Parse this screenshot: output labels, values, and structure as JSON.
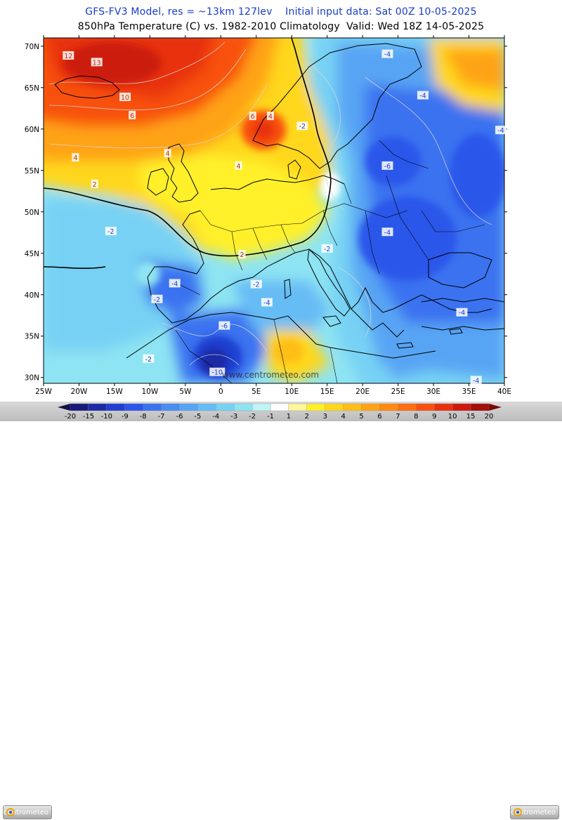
{
  "header": {
    "title_line1": "GFS-FV3 Model, res = ~13km 127lev    Initial input data: Sat 00Z 10-05-2025",
    "title_line2": "850hPa Temperature (C) vs. 1982-2010 Climatology  Valid: Wed 18Z 14-05-2025"
  },
  "axes": {
    "lat_labels": [
      "70N",
      "65N",
      "60N",
      "55N",
      "50N",
      "45N",
      "40N",
      "35N",
      "30N"
    ],
    "lon_labels": [
      "25W",
      "20W",
      "15W",
      "10W",
      "5W",
      "0",
      "5E",
      "10E",
      "15E",
      "20E",
      "25E",
      "30E",
      "35E",
      "40E"
    ]
  },
  "watermark": "www.centrometeo.com",
  "contour_labels": [
    {
      "text": "12",
      "lon": -21.5,
      "lat": 68.8
    },
    {
      "text": "13",
      "lon": -17.5,
      "lat": 68.0
    },
    {
      "text": "10",
      "lon": -13.5,
      "lat": 63.8
    },
    {
      "text": "6",
      "lon": -12.5,
      "lat": 61.6
    },
    {
      "text": "4",
      "lon": -20.5,
      "lat": 56.5
    },
    {
      "text": "4",
      "lon": -7.5,
      "lat": 57.0
    },
    {
      "text": "2",
      "lon": -17.8,
      "lat": 53.3
    },
    {
      "text": "4",
      "lon": 2.5,
      "lat": 55.5
    },
    {
      "text": "6",
      "lon": 4.5,
      "lat": 61.5
    },
    {
      "text": "4",
      "lon": 7.0,
      "lat": 61.5
    },
    {
      "text": "-2",
      "lon": 11.5,
      "lat": 60.3
    },
    {
      "text": "-4",
      "lon": 23.5,
      "lat": 69.0
    },
    {
      "text": "-4",
      "lon": 28.5,
      "lat": 64.0
    },
    {
      "text": "-4",
      "lon": 39.5,
      "lat": 59.8
    },
    {
      "text": "-6",
      "lon": 23.5,
      "lat": 55.5
    },
    {
      "text": "-4",
      "lon": 23.5,
      "lat": 47.5
    },
    {
      "text": "-2",
      "lon": -15.5,
      "lat": 47.6
    },
    {
      "text": "2",
      "lon": 3.0,
      "lat": 44.8
    },
    {
      "text": "-2",
      "lon": 15.0,
      "lat": 45.5
    },
    {
      "text": "-4",
      "lon": -6.5,
      "lat": 41.3
    },
    {
      "text": "-2",
      "lon": -9.0,
      "lat": 39.4
    },
    {
      "text": "-2",
      "lon": 5.0,
      "lat": 41.2
    },
    {
      "text": "-4",
      "lon": 6.5,
      "lat": 39.0
    },
    {
      "text": "-6",
      "lon": 0.5,
      "lat": 36.2
    },
    {
      "text": "-4",
      "lon": 34.0,
      "lat": 37.8
    },
    {
      "text": "-2",
      "lon": -10.2,
      "lat": 32.2
    },
    {
      "text": "-10",
      "lon": -0.5,
      "lat": 30.6
    },
    {
      "text": "-4",
      "lon": 36.0,
      "lat": 29.6
    }
  ],
  "legend": {
    "ticks": [
      "-20",
      "-15",
      "-10",
      "-9",
      "-8",
      "-7",
      "-6",
      "-5",
      "-4",
      "-3",
      "-2",
      "-1",
      "1",
      "2",
      "3",
      "4",
      "5",
      "6",
      "7",
      "8",
      "9",
      "10",
      "15",
      "20"
    ],
    "colors": [
      "#1a1a7a",
      "#1c2aa6",
      "#1f3fd0",
      "#2a57ea",
      "#3a72f0",
      "#4a8cf2",
      "#58a4f4",
      "#66bcf5",
      "#77d1f4",
      "#8ee4f2",
      "#bff5f7",
      "#ffffff",
      "#fff59a",
      "#fff02a",
      "#ffd71c",
      "#ffbe18",
      "#ffa314",
      "#ff8a12",
      "#ff6e10",
      "#f8510e",
      "#e8320d",
      "#cc1a0c",
      "#a30f0a"
    ]
  },
  "logos": {
    "left_text": "centrometeo",
    "right_text": "centrometeo"
  }
}
